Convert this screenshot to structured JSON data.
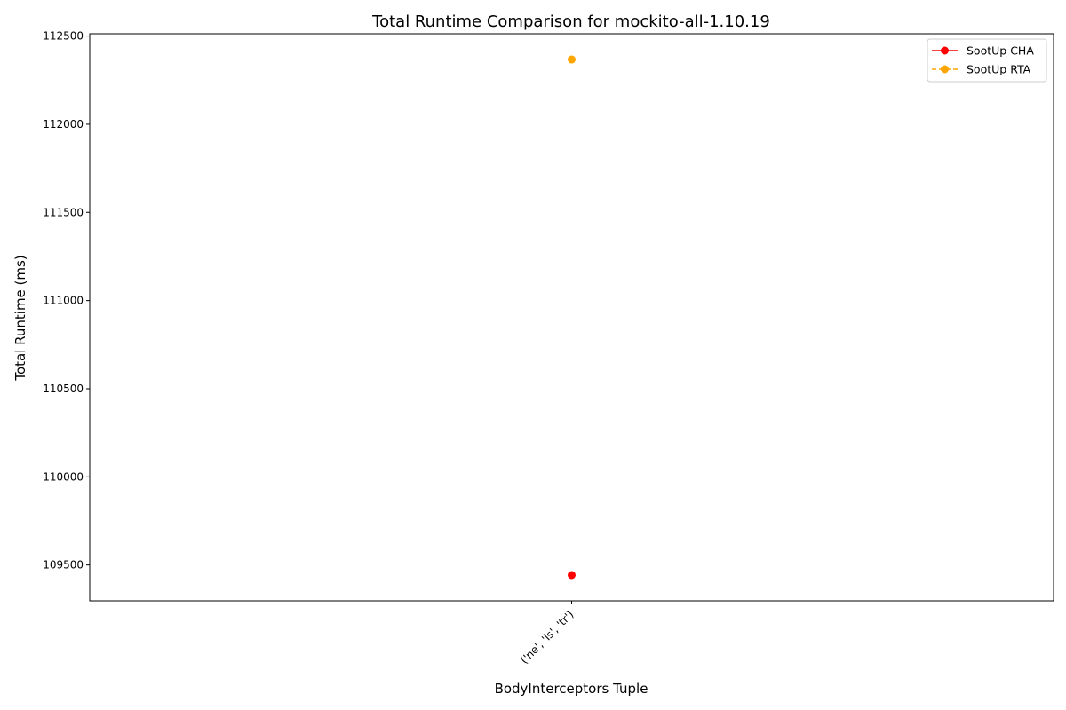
{
  "chart_data": {
    "type": "line",
    "title": "Total Runtime Comparison for mockito-all-1.10.19",
    "xlabel": "BodyInterceptors Tuple",
    "ylabel": "Total Runtime (ms)",
    "categories": [
      "('ne', 'ls', 'tr')"
    ],
    "series": [
      {
        "name": "SootUp CHA",
        "values": [
          109443
        ],
        "color": "#ff0000",
        "line_style": "solid",
        "marker": "circle"
      },
      {
        "name": "SootUp RTA",
        "values": [
          112367
        ],
        "color": "#ffa500",
        "line_style": "dashed",
        "marker": "circle"
      }
    ],
    "ylim": [
      109297,
      112513
    ],
    "yticks": [
      109500,
      110000,
      110500,
      111000,
      111500,
      112000,
      112500
    ],
    "grid": false,
    "legend_position": "top-right"
  }
}
